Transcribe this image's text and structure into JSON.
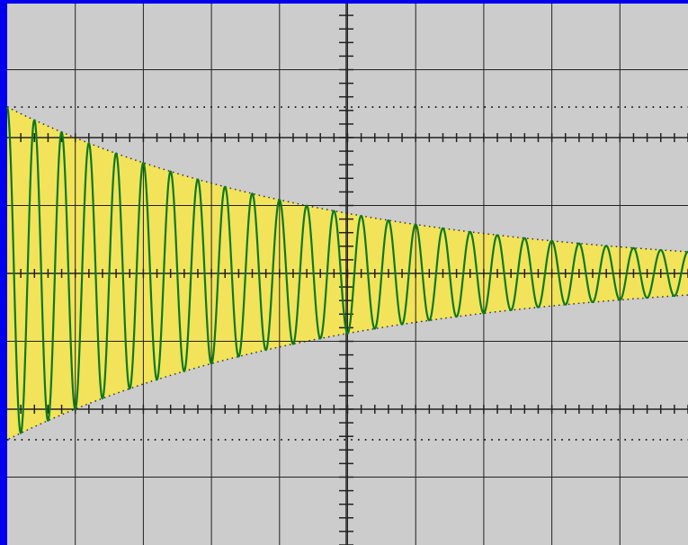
{
  "colors": {
    "frame": "#0000ee",
    "screen": "#cccccc",
    "grid": "#222222",
    "envelope_fill": "#f2e35a",
    "trace": "#0b7a1e",
    "reference_dots": "#000000"
  },
  "chart_data": {
    "type": "line",
    "title": "",
    "xlabel": "",
    "ylabel": "",
    "grid": true,
    "grid_divisions": {
      "x": 10,
      "y": 8
    },
    "xlim": [
      0,
      10
    ],
    "ylim": [
      -4,
      4
    ],
    "signal": {
      "kind": "damped-sine",
      "initial_amplitude": 2.45,
      "decay_time_div": 4.9,
      "period_div": 0.4,
      "start_phase_deg": 90
    },
    "envelope": {
      "shaded": true,
      "dotted_bounds": true
    },
    "reference_lines_y": [
      2.45,
      -2.45
    ],
    "series": [
      {
        "x": [
          0,
          1,
          2,
          3,
          4,
          5,
          6,
          7,
          8,
          9,
          10
        ],
        "upper": [
          2.45,
          2.0,
          1.63,
          1.33,
          1.09,
          0.89,
          0.72,
          0.59,
          0.48,
          0.39,
          0.32
        ],
        "lower": [
          -2.45,
          -2.0,
          -1.63,
          -1.33,
          -1.09,
          -0.89,
          -0.72,
          -0.59,
          -0.48,
          -0.39,
          -0.32
        ]
      }
    ]
  }
}
